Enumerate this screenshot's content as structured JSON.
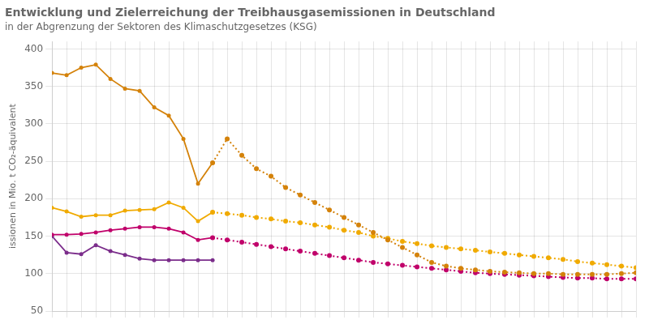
{
  "chart_data": {
    "type": "line",
    "title": "Entwicklung und Zielerreichung der Treibhausgasemissionen in Deutschland",
    "subtitle": "in der Abgrenzung der Sektoren des Klimaschutzgesetzes (KSG)",
    "ylabel": "issionen in Mio. t CO₂-äquivalent",
    "xlim": [
      1990,
      2030
    ],
    "xticks": [
      1990,
      1991,
      1992,
      1993,
      1994,
      1995,
      1996,
      1997,
      1998,
      1999,
      2000,
      2001,
      2002,
      2003,
      2004,
      2005,
      2006,
      2007,
      2008,
      2009,
      2010,
      2011,
      2012,
      2013,
      2014,
      2015,
      2016,
      2017,
      2018,
      2019,
      2020,
      2021,
      2022,
      2023,
      2024,
      2025,
      2026,
      2027,
      2028,
      2029,
      2030
    ],
    "ylim": [
      50,
      410
    ],
    "yticks": [
      50,
      100,
      150,
      200,
      250,
      300,
      350,
      400
    ],
    "grid": true,
    "tick_labels": "y",
    "series": [
      {
        "color": "#d4820a",
        "line_style": "solid",
        "marker": "circle",
        "x": [
          1990,
          1991,
          1992,
          1993,
          1994,
          1995,
          1996,
          1997,
          1998,
          1999,
          2000,
          2001
        ],
        "values": [
          368,
          365,
          375,
          379,
          360,
          347,
          344,
          322,
          311,
          280,
          220,
          248
        ]
      },
      {
        "color": "#d4820a",
        "line_style": "dotted",
        "marker": "circle",
        "x": [
          2001,
          2002,
          2003,
          2004,
          2005,
          2006,
          2007,
          2008,
          2009,
          2010,
          2011,
          2012,
          2013,
          2014,
          2015,
          2016,
          2017,
          2018,
          2019,
          2020,
          2021,
          2022,
          2023,
          2024,
          2025,
          2026,
          2027,
          2028,
          2029,
          2030
        ],
        "values": [
          248,
          280,
          258,
          240,
          230,
          215,
          205,
          195,
          185,
          175,
          165,
          155,
          145,
          135,
          125,
          115,
          110,
          107,
          105,
          103,
          102,
          101,
          100,
          100,
          99,
          99,
          99,
          99,
          100,
          101
        ]
      },
      {
        "color": "#f0aa00",
        "line_style": "solid",
        "marker": "circle",
        "x": [
          1990,
          1991,
          1992,
          1993,
          1994,
          1995,
          1996,
          1997,
          1998,
          1999,
          2000,
          2001
        ],
        "values": [
          188,
          183,
          176,
          178,
          178,
          184,
          185,
          186,
          195,
          188,
          170,
          182
        ]
      },
      {
        "color": "#f0aa00",
        "line_style": "dotted",
        "marker": "circle",
        "x": [
          2001,
          2002,
          2003,
          2004,
          2005,
          2006,
          2007,
          2008,
          2009,
          2010,
          2011,
          2012,
          2013,
          2014,
          2015,
          2016,
          2017,
          2018,
          2019,
          2020,
          2021,
          2022,
          2023,
          2024,
          2025,
          2026,
          2027,
          2028,
          2029,
          2030
        ],
        "values": [
          182,
          180,
          178,
          175,
          173,
          170,
          168,
          165,
          162,
          158,
          155,
          150,
          147,
          143,
          140,
          137,
          135,
          133,
          131,
          129,
          127,
          125,
          123,
          121,
          119,
          116,
          114,
          112,
          110,
          108
        ]
      },
      {
        "color": "#c0006a",
        "line_style": "solid",
        "marker": "circle",
        "x": [
          1990,
          1991,
          1992,
          1993,
          1994,
          1995,
          1996,
          1997,
          1998,
          1999,
          2000,
          2001
        ],
        "values": [
          152,
          152,
          153,
          155,
          158,
          160,
          162,
          162,
          160,
          155,
          145,
          148
        ]
      },
      {
        "color": "#c0006a",
        "line_style": "dotted",
        "marker": "circle",
        "x": [
          2001,
          2002,
          2003,
          2004,
          2005,
          2006,
          2007,
          2008,
          2009,
          2010,
          2011,
          2012,
          2013,
          2014,
          2015,
          2016,
          2017,
          2018,
          2019,
          2020,
          2021,
          2022,
          2023,
          2024,
          2025,
          2026,
          2027,
          2028,
          2029,
          2030
        ],
        "values": [
          148,
          145,
          142,
          139,
          136,
          133,
          130,
          127,
          124,
          121,
          118,
          115,
          113,
          111,
          109,
          107,
          105,
          103,
          101,
          100,
          99,
          98,
          97,
          96,
          95,
          94,
          94,
          93,
          93,
          93
        ]
      },
      {
        "color": "#7b2d8b",
        "line_style": "solid",
        "marker": "circle",
        "x": [
          1990,
          1991,
          1992,
          1993,
          1994,
          1995,
          1996,
          1997,
          1998,
          1999,
          2000,
          2001
        ],
        "values": [
          150,
          128,
          126,
          138,
          130,
          125,
          120,
          118,
          118,
          118,
          118,
          118
        ]
      }
    ]
  }
}
